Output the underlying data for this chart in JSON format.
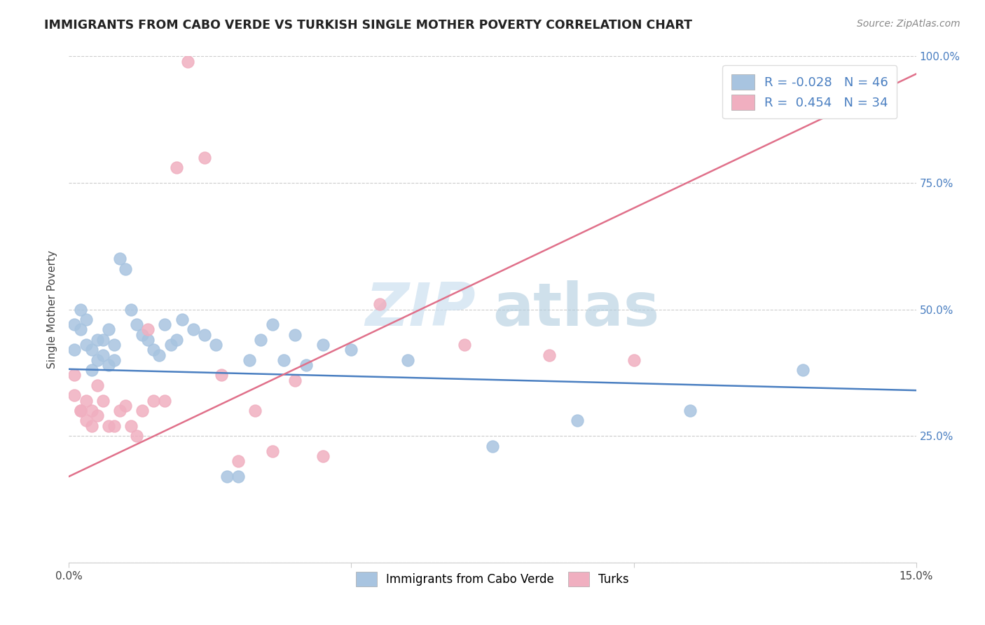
{
  "title": "IMMIGRANTS FROM CABO VERDE VS TURKISH SINGLE MOTHER POVERTY CORRELATION CHART",
  "source": "Source: ZipAtlas.com",
  "xlabel_label": "Immigrants from Cabo Verde",
  "ylabel_label": "Single Mother Poverty",
  "xlim": [
    0,
    0.15
  ],
  "ylim": [
    0,
    1.0
  ],
  "legend_r_blue": "-0.028",
  "legend_n_blue": "46",
  "legend_r_pink": "0.454",
  "legend_n_pink": "34",
  "blue_scatter_color": "#a8c4e0",
  "pink_scatter_color": "#f0afc0",
  "blue_line_color": "#4a7fc1",
  "pink_line_color": "#e0708a",
  "blue_reg_slope": -0.5,
  "blue_reg_intercept": 0.38,
  "pink_reg_slope": 5.0,
  "pink_reg_intercept": 0.18,
  "cabo_verde_x": [
    0.001,
    0.001,
    0.002,
    0.002,
    0.003,
    0.003,
    0.004,
    0.004,
    0.005,
    0.005,
    0.006,
    0.006,
    0.007,
    0.007,
    0.008,
    0.008,
    0.009,
    0.01,
    0.011,
    0.012,
    0.013,
    0.014,
    0.015,
    0.016,
    0.017,
    0.018,
    0.019,
    0.02,
    0.022,
    0.024,
    0.026,
    0.028,
    0.03,
    0.032,
    0.034,
    0.036,
    0.038,
    0.04,
    0.042,
    0.045,
    0.05,
    0.06,
    0.075,
    0.09,
    0.11,
    0.13
  ],
  "cabo_verde_y": [
    0.42,
    0.47,
    0.46,
    0.5,
    0.43,
    0.48,
    0.38,
    0.42,
    0.44,
    0.4,
    0.44,
    0.41,
    0.39,
    0.46,
    0.4,
    0.43,
    0.6,
    0.58,
    0.5,
    0.47,
    0.45,
    0.44,
    0.42,
    0.41,
    0.47,
    0.43,
    0.44,
    0.48,
    0.46,
    0.45,
    0.43,
    0.17,
    0.17,
    0.4,
    0.44,
    0.47,
    0.4,
    0.45,
    0.39,
    0.43,
    0.42,
    0.4,
    0.23,
    0.28,
    0.3,
    0.38
  ],
  "turks_x": [
    0.001,
    0.001,
    0.002,
    0.002,
    0.003,
    0.003,
    0.004,
    0.004,
    0.005,
    0.005,
    0.006,
    0.007,
    0.008,
    0.009,
    0.01,
    0.011,
    0.012,
    0.013,
    0.014,
    0.015,
    0.017,
    0.019,
    0.021,
    0.024,
    0.027,
    0.03,
    0.033,
    0.036,
    0.04,
    0.045,
    0.055,
    0.07,
    0.085,
    0.1
  ],
  "turks_y": [
    0.37,
    0.33,
    0.3,
    0.3,
    0.28,
    0.32,
    0.3,
    0.27,
    0.35,
    0.29,
    0.32,
    0.27,
    0.27,
    0.3,
    0.31,
    0.27,
    0.25,
    0.3,
    0.46,
    0.32,
    0.32,
    0.78,
    0.99,
    0.8,
    0.37,
    0.2,
    0.3,
    0.22,
    0.36,
    0.21,
    0.51,
    0.43,
    0.41,
    0.4
  ]
}
